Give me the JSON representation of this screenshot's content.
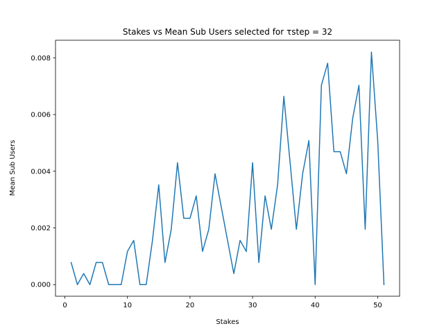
{
  "chart_data": {
    "type": "line",
    "title": "Stakes vs Mean Sub Users selected for τstep = 32",
    "xlabel": "Stakes",
    "ylabel": "Mean Sub Users",
    "xlim": [
      -1.5,
      53.5
    ],
    "ylim": [
      -0.00041,
      0.00862
    ],
    "xticks": [
      0,
      10,
      20,
      30,
      40,
      50
    ],
    "yticks": [
      0.0,
      0.002,
      0.004,
      0.006,
      0.008
    ],
    "xtick_labels": [
      "0",
      "10",
      "20",
      "30",
      "40",
      "50"
    ],
    "ytick_labels": [
      "0.000",
      "0.002",
      "0.004",
      "0.006",
      "0.008"
    ],
    "grid": false,
    "series": [
      {
        "color": "#1f77b4",
        "x": [
          1,
          2,
          3,
          4,
          5,
          6,
          7,
          8,
          9,
          10,
          11,
          12,
          13,
          14,
          15,
          16,
          17,
          18,
          19,
          20,
          21,
          22,
          23,
          24,
          25,
          26,
          27,
          28,
          29,
          30,
          31,
          32,
          33,
          34,
          35,
          36,
          37,
          38,
          39,
          40,
          41,
          42,
          43,
          44,
          45,
          46,
          47,
          48,
          49,
          50,
          51
        ],
        "values": [
          0.00078,
          0.0,
          0.00039,
          0.0,
          0.00078,
          0.00078,
          0.0,
          0.0,
          0.0,
          0.00117,
          0.00156,
          0.0,
          0.0,
          0.00156,
          0.00352,
          0.00078,
          0.00195,
          0.0043,
          0.00234,
          0.00234,
          0.00313,
          0.00117,
          0.00195,
          0.00391,
          0.00273,
          0.00156,
          0.00039,
          0.00156,
          0.00117,
          0.0043,
          0.00078,
          0.00313,
          0.00195,
          0.00352,
          0.00664,
          0.0043,
          0.00195,
          0.00391,
          0.00508,
          0.0,
          0.00703,
          0.00781,
          0.00469,
          0.00469,
          0.00391,
          0.00586,
          0.00703,
          0.00195,
          0.0082,
          0.00508,
          0.0
        ]
      }
    ]
  }
}
